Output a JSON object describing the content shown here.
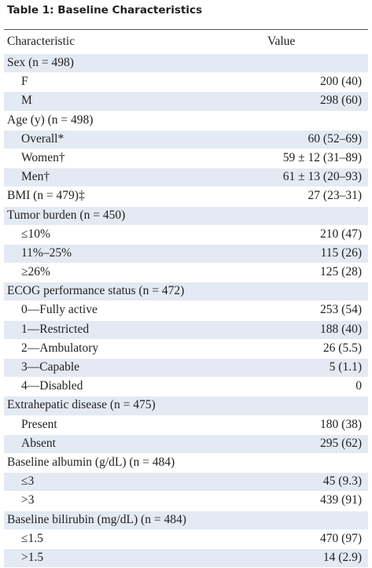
{
  "title": "Table 1: Baseline Characteristics",
  "header": {
    "characteristic": "Characteristic",
    "value": "Value"
  },
  "sections": [
    {
      "label": "Sex (n = 498)",
      "rows": [
        {
          "label": "F",
          "value": "200 (40)"
        },
        {
          "label": "M",
          "value": "298 (60)"
        }
      ]
    },
    {
      "label": "Age (y) (n = 498)",
      "rows": [
        {
          "label": "Overall*",
          "value": "60 (52–69)"
        },
        {
          "label": "Women†",
          "value": "59 ± 12 (31–89)"
        },
        {
          "label": "Men†",
          "value": "61 ± 13 (20–93)"
        }
      ]
    },
    {
      "label": "BMI (n = 479)‡",
      "value": "27 (23–31)",
      "rows": []
    },
    {
      "label": "Tumor burden (n = 450)",
      "rows": [
        {
          "label": "≤10%",
          "value": "210 (47)"
        },
        {
          "label": "11%–25%",
          "value": "115 (26)"
        },
        {
          "label": "≥26%",
          "value": "125 (28)"
        }
      ]
    },
    {
      "label": "ECOG performance status (n = 472)",
      "rows": [
        {
          "label": "0—Fully active",
          "value": "253 (54)"
        },
        {
          "label": "1—Restricted",
          "value": "188 (40)"
        },
        {
          "label": "2—Ambulatory",
          "value": "26 (5.5)"
        },
        {
          "label": "3—Capable",
          "value": "5 (1.1)"
        },
        {
          "label": "4—Disabled",
          "value": "0"
        }
      ]
    },
    {
      "label": "Extrahepatic disease (n = 475)",
      "rows": [
        {
          "label": "Present",
          "value": "180 (38)"
        },
        {
          "label": "Absent",
          "value": "295 (62)"
        }
      ]
    },
    {
      "label": "Baseline albumin (g/dL) (n = 484)",
      "rows": [
        {
          "label": "≤3",
          "value": "45 (9.3)"
        },
        {
          "label": ">3",
          "value": "439 (91)"
        }
      ]
    },
    {
      "label": "Baseline bilirubin (mg/dL) (n = 484)",
      "rows": [
        {
          "label": "≤1.5",
          "value": "470 (97)"
        },
        {
          "label": ">1.5",
          "value": "14 (2.9)"
        }
      ]
    }
  ]
}
